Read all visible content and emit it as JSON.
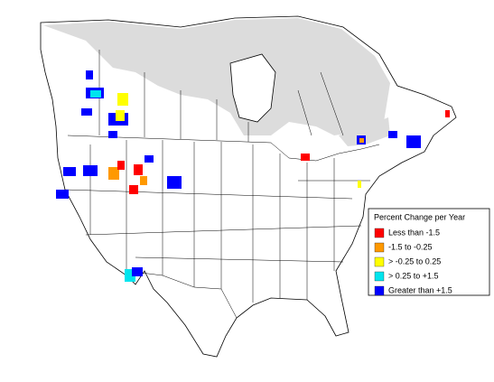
{
  "legend": {
    "title": "Percent Change per Year",
    "items": [
      {
        "label": "Less than -1.5",
        "color": "#ff0000"
      },
      {
        "label": "-1.5 to -0.25",
        "color": "#ff9900"
      },
      {
        "label": "> -0.25 to 0.25",
        "color": "#ffff00"
      },
      {
        "label": "> 0.25 to +1.5",
        "color": "#00e5ee"
      },
      {
        "label": "Greater than +1.5",
        "color": "#0000ff"
      }
    ]
  }
}
